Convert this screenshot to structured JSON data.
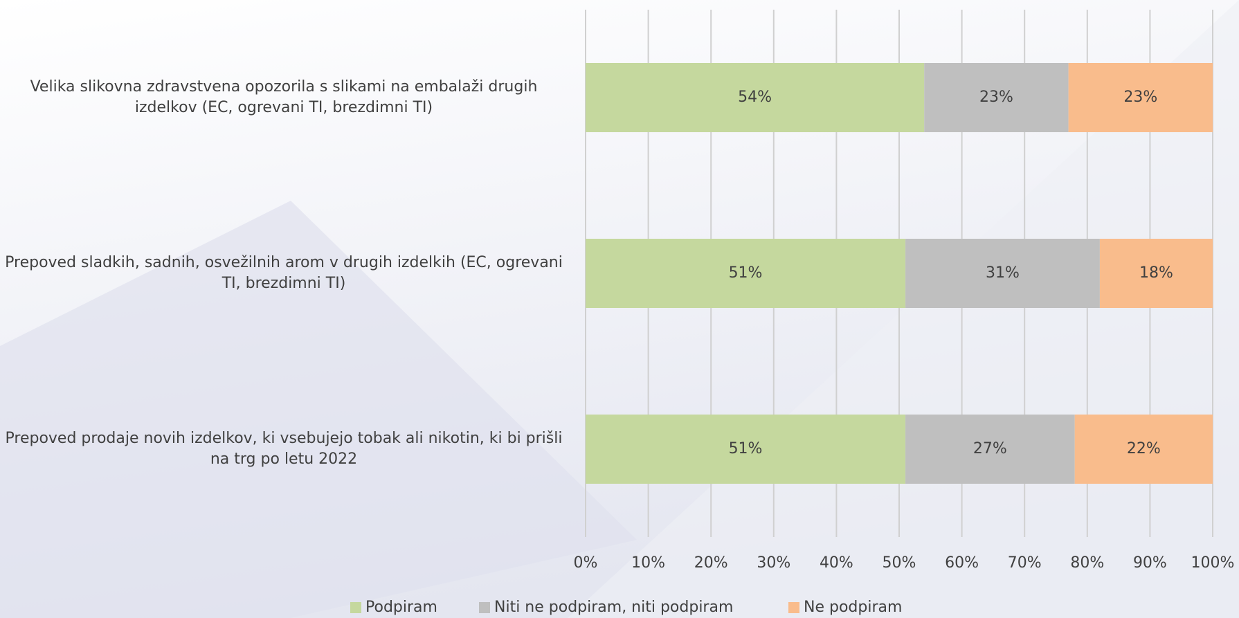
{
  "chart_data": {
    "type": "stacked_barh",
    "categories": [
      "Velika slikovna zdravstvena opozorila s slikami na embalaži drugih izdelkov (EC, ogrevani TI, brezdimni TI)",
      "Prepoved sladkih, sadnih, osvežilnih arom v drugih izdelkih (EC, ogrevani TI, brezdimni TI)",
      "Prepoved prodaje novih izdelkov, ki vsebujejo tobak ali nikotin, ki bi prišli na trg po letu 2022"
    ],
    "series": [
      {
        "name": "Podpiram",
        "color": "#c5d89e",
        "values": [
          54,
          51,
          51
        ],
        "value_labels": [
          "54%",
          "51%",
          "51%"
        ]
      },
      {
        "name": "Niti ne podpiram, niti podpiram",
        "color": "#bfbfbf",
        "values": [
          23,
          31,
          27
        ],
        "value_labels": [
          "23%",
          "31%",
          "27%"
        ]
      },
      {
        "name": "Ne podpiram",
        "color": "#f9bc8c",
        "values": [
          23,
          18,
          22
        ],
        "value_labels": [
          "23%",
          "18%",
          "22%"
        ]
      }
    ],
    "xlim": [
      0,
      100
    ],
    "xticks": [
      {
        "value": 0,
        "label": "0%"
      },
      {
        "value": 10,
        "label": "10%"
      },
      {
        "value": 20,
        "label": "20%"
      },
      {
        "value": 30,
        "label": "30%"
      },
      {
        "value": 40,
        "label": "40%"
      },
      {
        "value": 50,
        "label": "50%"
      },
      {
        "value": 60,
        "label": "60%"
      },
      {
        "value": 70,
        "label": "70%"
      },
      {
        "value": 80,
        "label": "80%"
      },
      {
        "value": 90,
        "label": "90%"
      },
      {
        "value": 100,
        "label": "100%"
      }
    ],
    "grid": true,
    "legend": "bottom"
  }
}
